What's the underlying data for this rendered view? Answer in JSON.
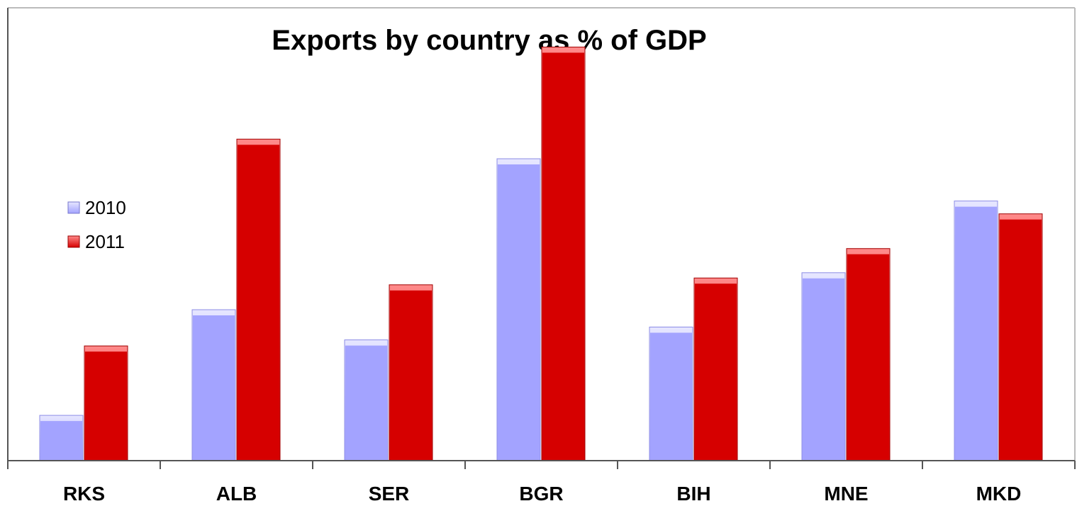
{
  "chart_data": {
    "type": "bar",
    "title": "Exports by country as % of GDP",
    "xlabel": "",
    "ylabel": "",
    "categories": [
      "RKS",
      "ALB",
      "SER",
      "BGR",
      "BIH",
      "MNE",
      "MKD"
    ],
    "series": [
      {
        "name": "2010",
        "color": "#a3a3ff",
        "values": [
          6,
          20,
          16,
          40,
          17.7,
          24.9,
          34.4
        ]
      },
      {
        "name": "2011",
        "color": "#d60000",
        "values": [
          15.2,
          42.6,
          23.3,
          54.8,
          24.2,
          28.1,
          32.7
        ]
      }
    ],
    "ylim": [
      0,
      60
    ],
    "grid": false,
    "legend": "left"
  }
}
